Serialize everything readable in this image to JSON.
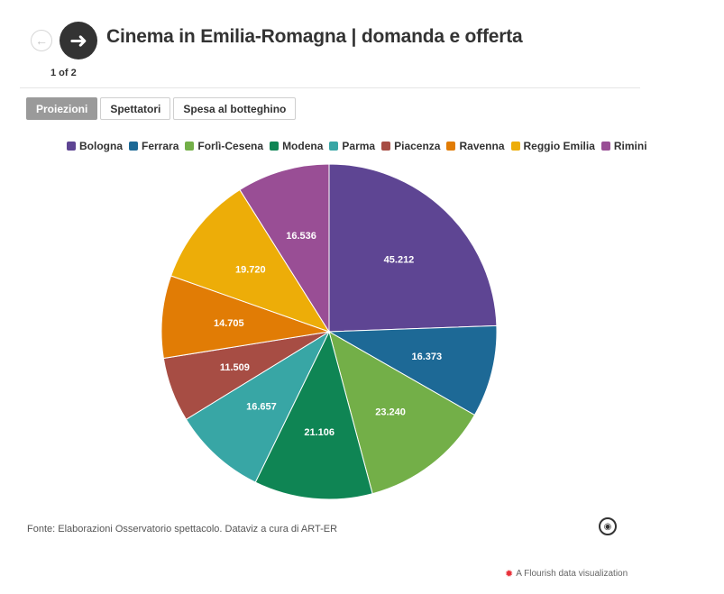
{
  "header": {
    "title": "Cinema in Emilia-Romagna | domanda e offerta",
    "pager": "1 of 2",
    "prev_icon": "arrow-left-icon",
    "next_icon": "arrow-right-icon"
  },
  "tabs": [
    {
      "label": "Proiezioni",
      "active": true
    },
    {
      "label": "Spettatori",
      "active": false
    },
    {
      "label": "Spesa al botteghino",
      "active": false
    }
  ],
  "chart_data": {
    "type": "pie",
    "title": "",
    "categories": [
      "Bologna",
      "Ferrara",
      "Forlì-Cesena",
      "Modena",
      "Parma",
      "Piacenza",
      "Ravenna",
      "Reggio Emilia",
      "Rimini"
    ],
    "values": [
      45212,
      16373,
      23240,
      21106,
      16657,
      11509,
      14705,
      19720,
      16536
    ],
    "value_labels": [
      "45.212",
      "16.373",
      "23.240",
      "21.106",
      "16.657",
      "11.509",
      "14.705",
      "19.720",
      "16.536"
    ],
    "colors": [
      "#5e4593",
      "#1d6996",
      "#73af48",
      "#0f8554",
      "#38a6a5",
      "#a74d44",
      "#e17c05",
      "#edad08",
      "#994e95"
    ],
    "legend_position": "top"
  },
  "footer": {
    "source": "Fonte: Elaborazioni Osservatorio spettacolo. Dataviz a cura di ART-ER",
    "brand_icon": "art-er-logo-icon",
    "flourish_label": "A Flourish data visualization"
  }
}
